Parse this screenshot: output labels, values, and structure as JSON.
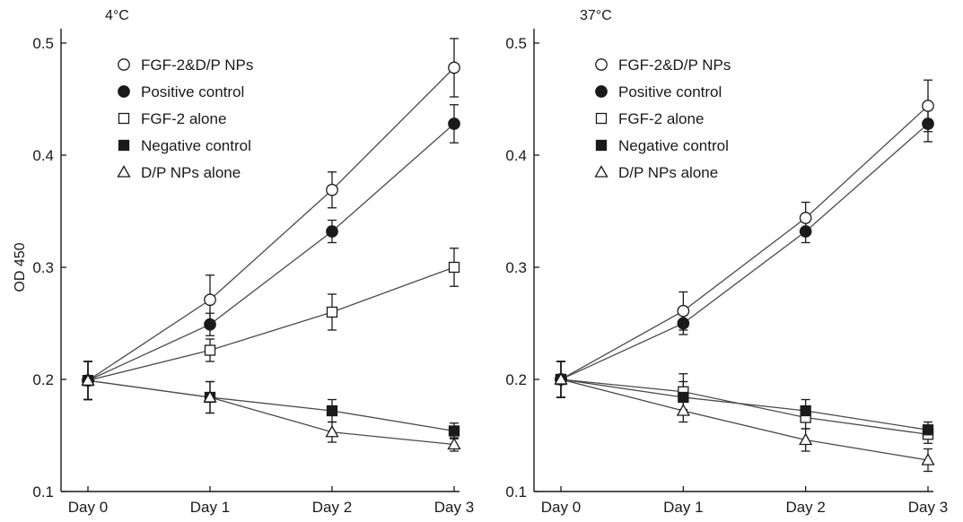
{
  "chart_data": [
    {
      "type": "line",
      "title": "4°C",
      "xlabel": "",
      "ylabel": "OD 450",
      "categories": [
        "Day 0",
        "Day 1",
        "Day 2",
        "Day 3"
      ],
      "ylim": [
        0.1,
        0.5
      ],
      "yticks": [
        "0.1",
        "0.2",
        "0.3",
        "0.4",
        "0.5"
      ],
      "grid": false,
      "legend_position": "top-left",
      "series": [
        {
          "name": "FGF-2&D/P NPs",
          "marker": "open-circle",
          "values": [
            0.199,
            0.271,
            0.369,
            0.478
          ],
          "errors": [
            0.017,
            0.022,
            0.016,
            0.026
          ]
        },
        {
          "name": "Positive control",
          "marker": "filled-circle",
          "values": [
            0.199,
            0.249,
            0.332,
            0.428
          ],
          "errors": [
            0.017,
            0.01,
            0.01,
            0.017
          ]
        },
        {
          "name": "FGF-2 alone",
          "marker": "open-square",
          "values": [
            0.199,
            0.226,
            0.26,
            0.3
          ],
          "errors": [
            0.017,
            0.01,
            0.016,
            0.017
          ]
        },
        {
          "name": "Negative control",
          "marker": "filled-square",
          "values": [
            0.199,
            0.184,
            0.172,
            0.154
          ],
          "errors": [
            0.017,
            0.014,
            0.01,
            0.007
          ]
        },
        {
          "name": "D/P NPs alone",
          "marker": "open-triangle",
          "values": [
            0.199,
            0.184,
            0.153,
            0.142
          ],
          "errors": [
            0.017,
            0.014,
            0.009,
            0.006
          ]
        }
      ]
    },
    {
      "type": "line",
      "title": "37°C",
      "xlabel": "",
      "ylabel": "",
      "categories": [
        "Day 0",
        "Day 1",
        "Day 2",
        "Day 3"
      ],
      "ylim": [
        0.1,
        0.5
      ],
      "yticks": [
        "0.1",
        "0.2",
        "0.3",
        "0.4",
        "0.5"
      ],
      "grid": false,
      "legend_position": "top-left",
      "series": [
        {
          "name": "FGF-2&D/P NPs",
          "marker": "open-circle",
          "values": [
            0.2,
            0.261,
            0.344,
            0.444
          ],
          "errors": [
            0.016,
            0.017,
            0.014,
            0.023
          ]
        },
        {
          "name": "Positive control",
          "marker": "filled-circle",
          "values": [
            0.2,
            0.25,
            0.332,
            0.428
          ],
          "errors": [
            0.016,
            0.01,
            0.01,
            0.016
          ]
        },
        {
          "name": "FGF-2 alone",
          "marker": "open-square",
          "values": [
            0.2,
            0.189,
            0.166,
            0.151
          ],
          "errors": [
            0.016,
            0.016,
            0.01,
            0.008
          ]
        },
        {
          "name": "Negative control",
          "marker": "filled-square",
          "values": [
            0.2,
            0.184,
            0.172,
            0.155
          ],
          "errors": [
            0.016,
            0.014,
            0.01,
            0.007
          ]
        },
        {
          "name": "D/P NPs alone",
          "marker": "open-triangle",
          "values": [
            0.2,
            0.172,
            0.146,
            0.128
          ],
          "errors": [
            0.016,
            0.01,
            0.01,
            0.01
          ]
        }
      ]
    }
  ],
  "colors": {
    "line": "#4a4a4a",
    "marker": "#1a1a1a",
    "axis": "#1a1a1a"
  }
}
